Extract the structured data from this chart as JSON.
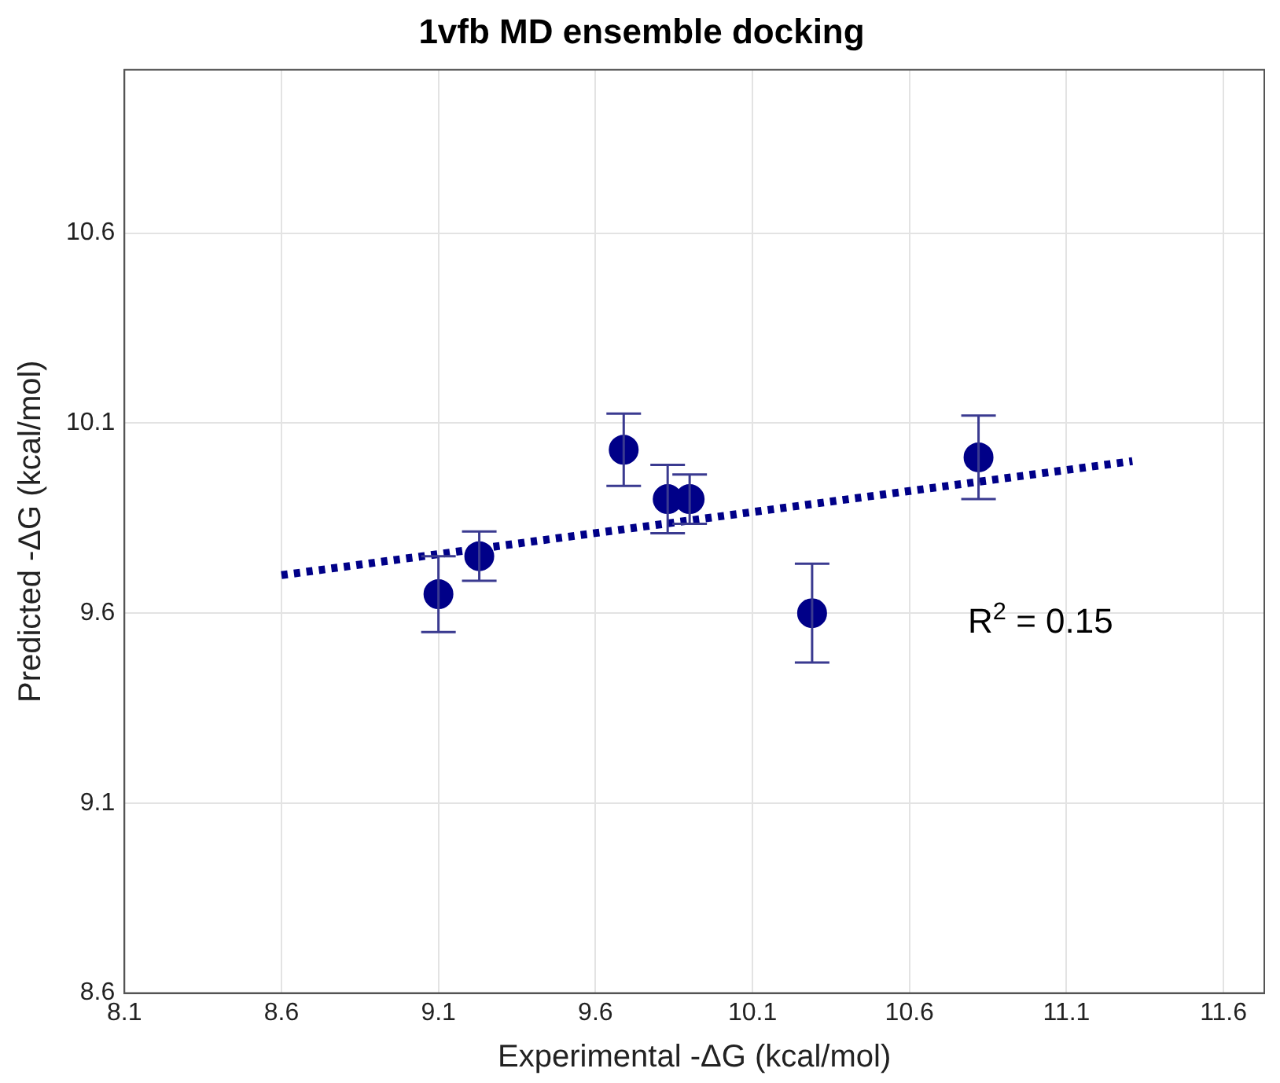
{
  "chart_data": {
    "type": "scatter",
    "title": "1vfb MD ensemble docking",
    "xlabel": "Experimental -ΔG (kcal/mol)",
    "ylabel": "Predicted -ΔG (kcal/mol)",
    "x": [
      9.1,
      9.23,
      9.69,
      9.83,
      9.9,
      10.29,
      10.82
    ],
    "series": [
      {
        "color": "#000088",
        "marker": "circle",
        "values": [
          9.65,
          9.75,
          10.03,
          9.9,
          9.9,
          9.6,
          10.01
        ],
        "errors": [
          0.1,
          0.065,
          0.095,
          0.09,
          0.065,
          0.13,
          0.11
        ]
      },
      {
        "type": "line",
        "color": "#000088",
        "line_style": "dotted",
        "marker": "none",
        "x": [
          8.6,
          11.31
        ],
        "values": [
          9.7,
          10.0
        ]
      }
    ],
    "xlim": [
      8.1,
      11.73
    ],
    "ylim": [
      8.6,
      11.03
    ],
    "xticks": [
      8.1,
      8.6,
      9.1,
      9.6,
      10.1,
      10.6,
      11.1,
      11.6
    ],
    "yticks": [
      8.6,
      9.1,
      9.6,
      10.1,
      10.6
    ],
    "grid": true,
    "legend": false,
    "annotations": [
      "R$^{2}$ = 0.15"
    ]
  }
}
